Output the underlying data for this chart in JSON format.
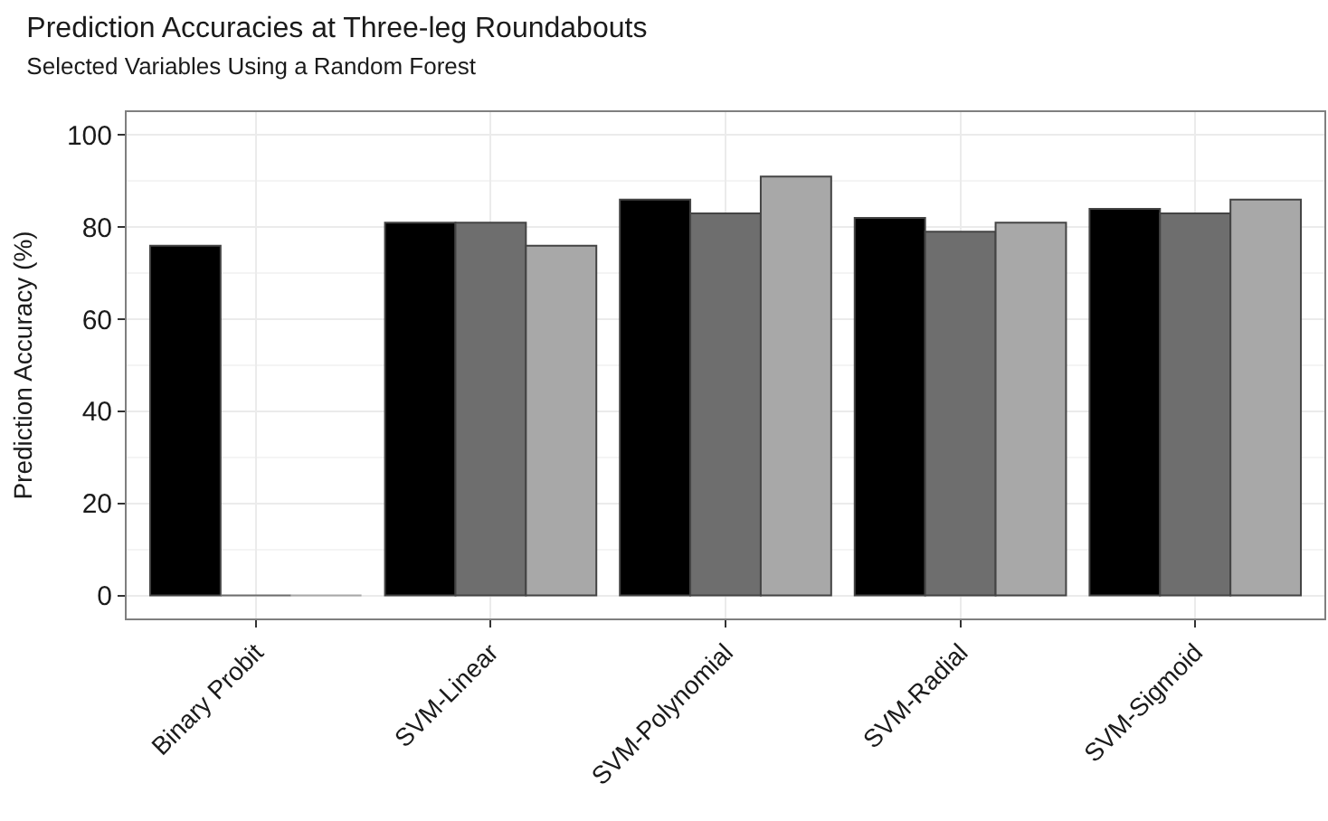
{
  "chart_data": {
    "type": "bar",
    "title": "Prediction Accuracies at Three-leg Roundabouts",
    "subtitle": "Selected Variables Using a Random Forest",
    "ylabel": "Prediction Accuracy (%)",
    "categories": [
      "Binary Probit",
      "SVM-Linear",
      "SVM-Polynomial",
      "SVM-Radial",
      "SVM-Sigmoid"
    ],
    "series": [
      {
        "color": "#000000",
        "values": [
          76,
          81,
          86,
          82,
          84
        ]
      },
      {
        "color": "#6e6e6e",
        "values": [
          0,
          81,
          83,
          79,
          83
        ]
      },
      {
        "color": "#a8a8a8",
        "values": [
          0,
          76,
          91,
          81,
          86
        ]
      }
    ],
    "ylim": [
      -5,
      105
    ],
    "yticks": [
      0,
      20,
      40,
      60,
      80,
      100
    ],
    "grid": true
  }
}
